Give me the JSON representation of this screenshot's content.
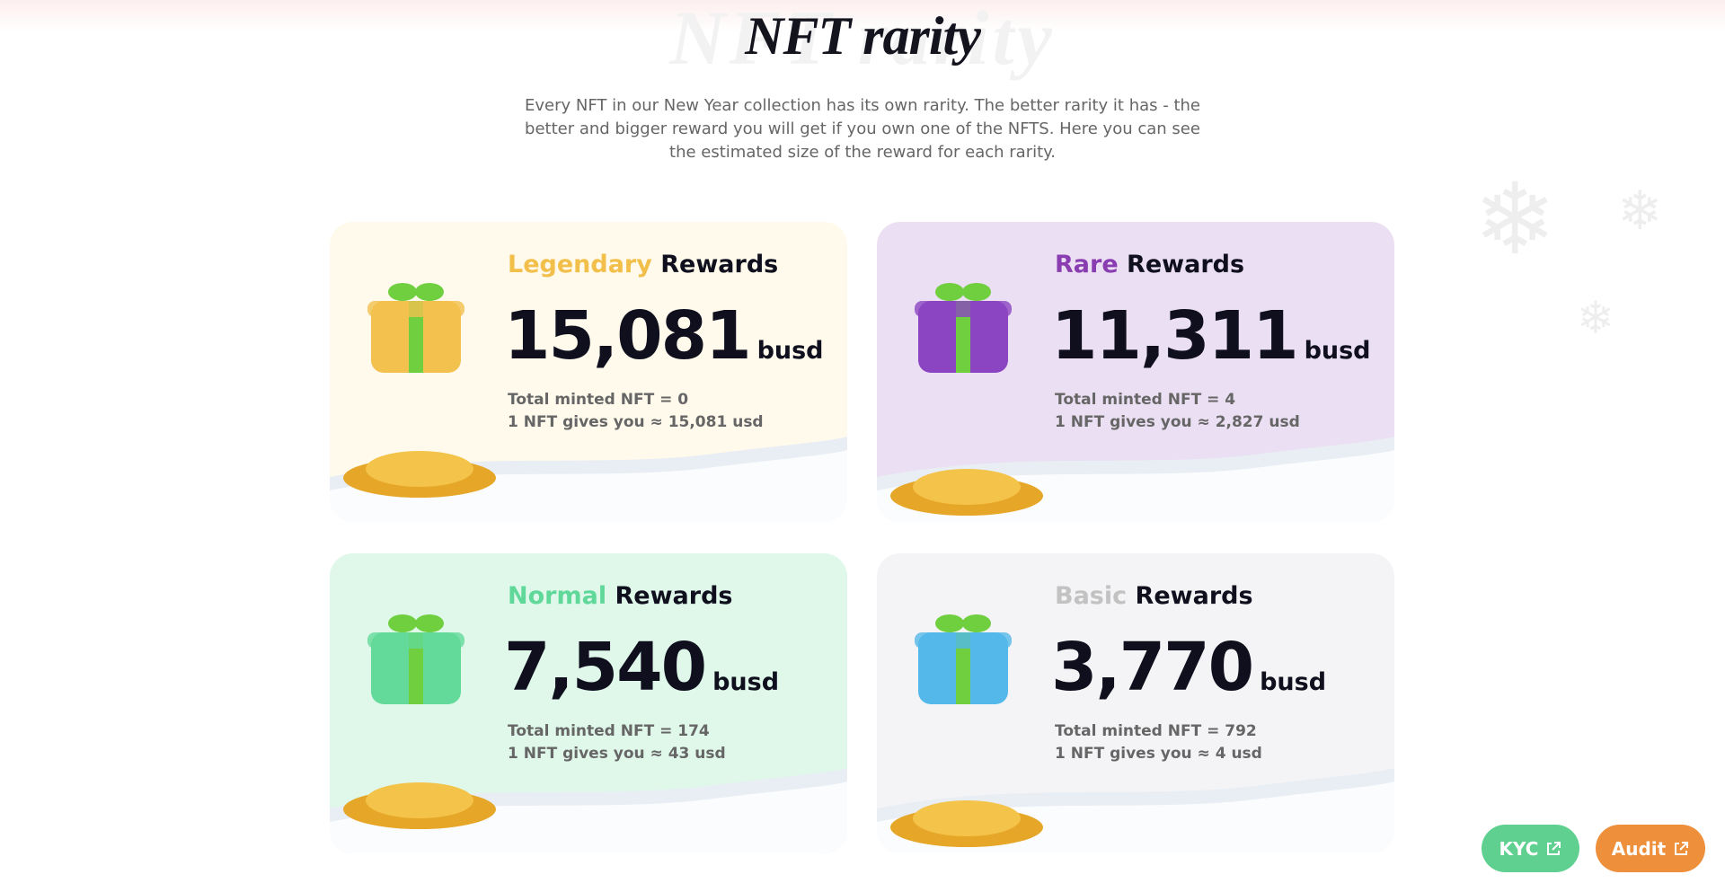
{
  "header": {
    "title": "NFT rarity",
    "description": "Every NFT in our New Year collection has its own rarity. The better rarity it has - the better and bigger reward you will get if you own one of the NFTS. Here you can see the estimated size of the reward for each rarity."
  },
  "cards": [
    {
      "tier": "Legendary",
      "word": "Rewards",
      "amount": "15,081",
      "unit": "busd",
      "minted": "Total minted NFT = 0",
      "gives": "1 NFT gives you ≈ 15,081 usd"
    },
    {
      "tier": "Rare",
      "word": "Rewards",
      "amount": "11,311",
      "unit": "busd",
      "minted": "Total minted NFT = 4",
      "gives": "1 NFT gives you ≈ 2,827 usd"
    },
    {
      "tier": "Normal",
      "word": "Rewards",
      "amount": "7,540",
      "unit": "busd",
      "minted": "Total minted NFT = 174",
      "gives": "1 NFT gives you ≈ 43 usd"
    },
    {
      "tier": "Basic",
      "word": "Rewards",
      "amount": "3,770",
      "unit": "busd",
      "minted": "Total minted NFT = 792",
      "gives": "1 NFT gives you ≈ 4 usd"
    }
  ],
  "buttons": {
    "kyc": "KYC",
    "audit": "Audit"
  }
}
